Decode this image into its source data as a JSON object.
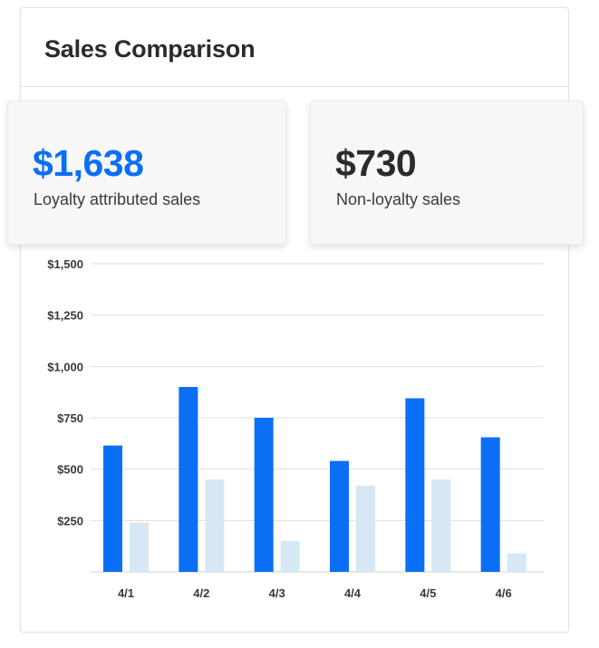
{
  "panel": {
    "title": "Sales Comparison"
  },
  "stats": [
    {
      "value": "$1,638",
      "label": "Loyalty attributed sales",
      "color": "#0b6ff5"
    },
    {
      "value": "$730",
      "label": "Non-loyalty sales",
      "color": "#2b2b2b"
    }
  ],
  "colors": {
    "loyalty": "#0b6ff5",
    "non_loyalty": "#d5e8f3",
    "grid": "#dedede"
  },
  "chart_data": {
    "type": "bar",
    "categories": [
      "4/1",
      "4/2",
      "4/3",
      "4/4",
      "4/5",
      "4/6"
    ],
    "series": [
      {
        "values": [
          615,
          900,
          750,
          540,
          845,
          655
        ]
      },
      {
        "values": [
          240,
          450,
          150,
          420,
          450,
          90
        ]
      }
    ],
    "y_ticks": [
      {
        "value": 250,
        "label": "$250"
      },
      {
        "value": 500,
        "label": "$500"
      },
      {
        "value": 750,
        "label": "$750"
      },
      {
        "value": 1000,
        "label": "$1,000"
      },
      {
        "value": 1250,
        "label": "$1,250"
      },
      {
        "value": 1500,
        "label": "$1,500"
      }
    ],
    "ylim": [
      0,
      1500
    ],
    "grid": true
  }
}
